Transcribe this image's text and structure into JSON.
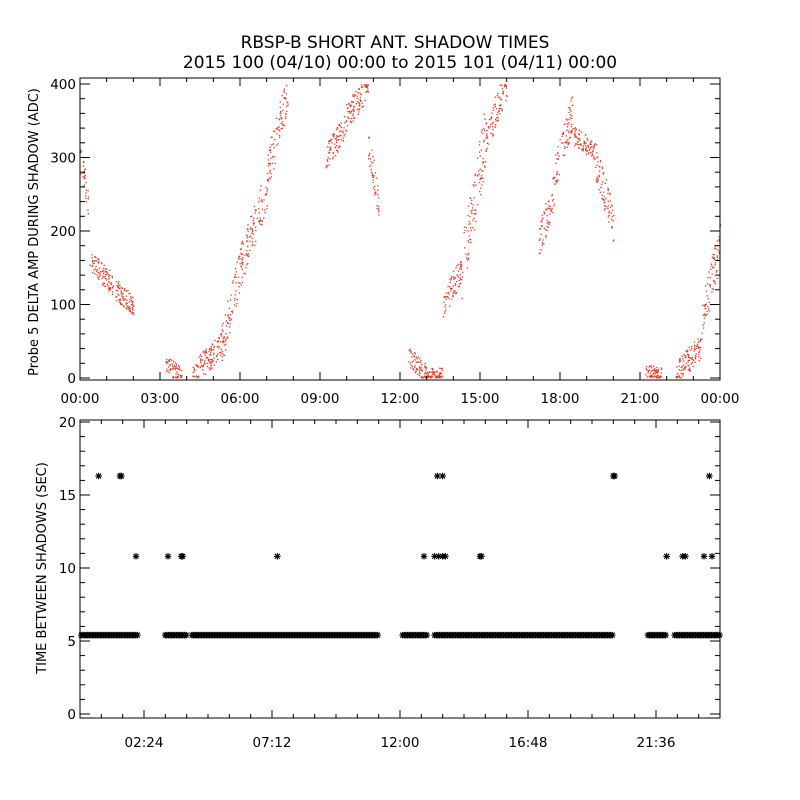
{
  "figure": {
    "title_line1": "RBSP-B SHORT ANT. SHADOW TIMES",
    "title_line2": "2015 100 (04/10) 00:00 to 2015 101 (04/11) 00:00"
  },
  "chart_data": [
    {
      "type": "scatter",
      "ylabel": "Probe 5 DELTA AMP DURING SHADOW (ADC)",
      "xlabel": "",
      "xlim_hours": [
        0,
        24
      ],
      "ylim": [
        0,
        400
      ],
      "x_tick_labels": [
        "00:00",
        "03:00",
        "06:00",
        "09:00",
        "12:00",
        "15:00",
        "18:00",
        "21:00",
        "00:00"
      ],
      "y_tick_labels": [
        "0",
        "100",
        "200",
        "300",
        "400"
      ],
      "marker_color": "#e8351e",
      "series_envelope": [
        {
          "hours": [
            0.0,
            0.3
          ],
          "values": [
            300,
            240
          ]
        },
        {
          "hours": [
            0.35,
            1.2
          ],
          "values": [
            160,
            130
          ]
        },
        {
          "hours": [
            1.2,
            2.0
          ],
          "values": [
            125,
            100
          ]
        },
        {
          "hours": [
            3.2,
            3.8
          ],
          "values": [
            18,
            3
          ]
        },
        {
          "hours": [
            4.2,
            5.3
          ],
          "values": [
            5,
            45
          ]
        },
        {
          "hours": [
            5.3,
            6.0
          ],
          "values": [
            45,
            150
          ]
        },
        {
          "hours": [
            6.0,
            7.0
          ],
          "values": [
            150,
            260
          ]
        },
        {
          "hours": [
            7.0,
            7.8
          ],
          "values": [
            280,
            390
          ]
        },
        {
          "hours": [
            9.2,
            9.9
          ],
          "values": [
            300,
            340
          ]
        },
        {
          "hours": [
            9.9,
            10.8
          ],
          "values": [
            350,
            400
          ]
        },
        {
          "hours": [
            10.8,
            11.2
          ],
          "values": [
            320,
            240
          ]
        },
        {
          "hours": [
            12.3,
            13.0
          ],
          "values": [
            30,
            3
          ]
        },
        {
          "hours": [
            13.0,
            13.6
          ],
          "values": [
            3,
            5
          ]
        },
        {
          "hours": [
            13.6,
            14.3
          ],
          "values": [
            100,
            150
          ]
        },
        {
          "hours": [
            14.3,
            15.2
          ],
          "values": [
            150,
            330
          ]
        },
        {
          "hours": [
            15.2,
            16.0
          ],
          "values": [
            330,
            400
          ]
        },
        {
          "hours": [
            17.2,
            17.8
          ],
          "values": [
            185,
            260
          ]
        },
        {
          "hours": [
            17.8,
            18.5
          ],
          "values": [
            280,
            370
          ]
        },
        {
          "hours": [
            18.5,
            19.3
          ],
          "values": [
            330,
            310
          ]
        },
        {
          "hours": [
            19.3,
            20.0
          ],
          "values": [
            300,
            210
          ]
        },
        {
          "hours": [
            21.2,
            21.8
          ],
          "values": [
            8,
            5
          ]
        },
        {
          "hours": [
            22.3,
            23.3
          ],
          "values": [
            5,
            45
          ]
        },
        {
          "hours": [
            23.3,
            24.0
          ],
          "values": [
            80,
            185
          ]
        }
      ]
    },
    {
      "type": "scatter",
      "ylabel": "TIME BETWEEN SHADOWS (SEC)",
      "xlabel": "",
      "xlim_hours": [
        0,
        24
      ],
      "ylim": [
        0,
        20
      ],
      "x_tick_labels": [
        "02:24",
        "07:12",
        "12:00",
        "16:48",
        "21:36"
      ],
      "y_tick_labels": [
        "0",
        "5",
        "10",
        "15",
        "20"
      ],
      "marker": "asterisk",
      "marker_color": "#000000",
      "baseline_value": 5.4,
      "baseline_segments_hours": [
        [
          0.05,
          2.2
        ],
        [
          3.2,
          4.0
        ],
        [
          4.2,
          11.2
        ],
        [
          12.1,
          13.0
        ],
        [
          13.3,
          20.0
        ],
        [
          21.3,
          22.0
        ],
        [
          22.3,
          24.0
        ]
      ],
      "points": [
        {
          "hour": 0.7,
          "value": 16.3
        },
        {
          "hour": 1.5,
          "value": 16.3
        },
        {
          "hour": 1.55,
          "value": 16.3
        },
        {
          "hour": 2.1,
          "value": 10.8
        },
        {
          "hour": 3.3,
          "value": 10.8
        },
        {
          "hour": 3.8,
          "value": 10.8
        },
        {
          "hour": 3.85,
          "value": 10.8
        },
        {
          "hour": 7.4,
          "value": 10.8
        },
        {
          "hour": 12.9,
          "value": 10.8
        },
        {
          "hour": 13.3,
          "value": 10.8
        },
        {
          "hour": 13.4,
          "value": 16.3
        },
        {
          "hour": 13.45,
          "value": 10.8
        },
        {
          "hour": 13.6,
          "value": 10.8
        },
        {
          "hour": 13.6,
          "value": 16.3
        },
        {
          "hour": 13.7,
          "value": 10.8
        },
        {
          "hour": 15.0,
          "value": 10.8
        },
        {
          "hour": 15.05,
          "value": 10.8
        },
        {
          "hour": 20.0,
          "value": 16.3
        },
        {
          "hour": 20.05,
          "value": 16.3
        },
        {
          "hour": 22.0,
          "value": 10.8
        },
        {
          "hour": 22.6,
          "value": 10.8
        },
        {
          "hour": 22.7,
          "value": 10.8
        },
        {
          "hour": 23.4,
          "value": 10.8
        },
        {
          "hour": 23.6,
          "value": 16.3
        },
        {
          "hour": 23.7,
          "value": 10.8
        }
      ]
    }
  ]
}
